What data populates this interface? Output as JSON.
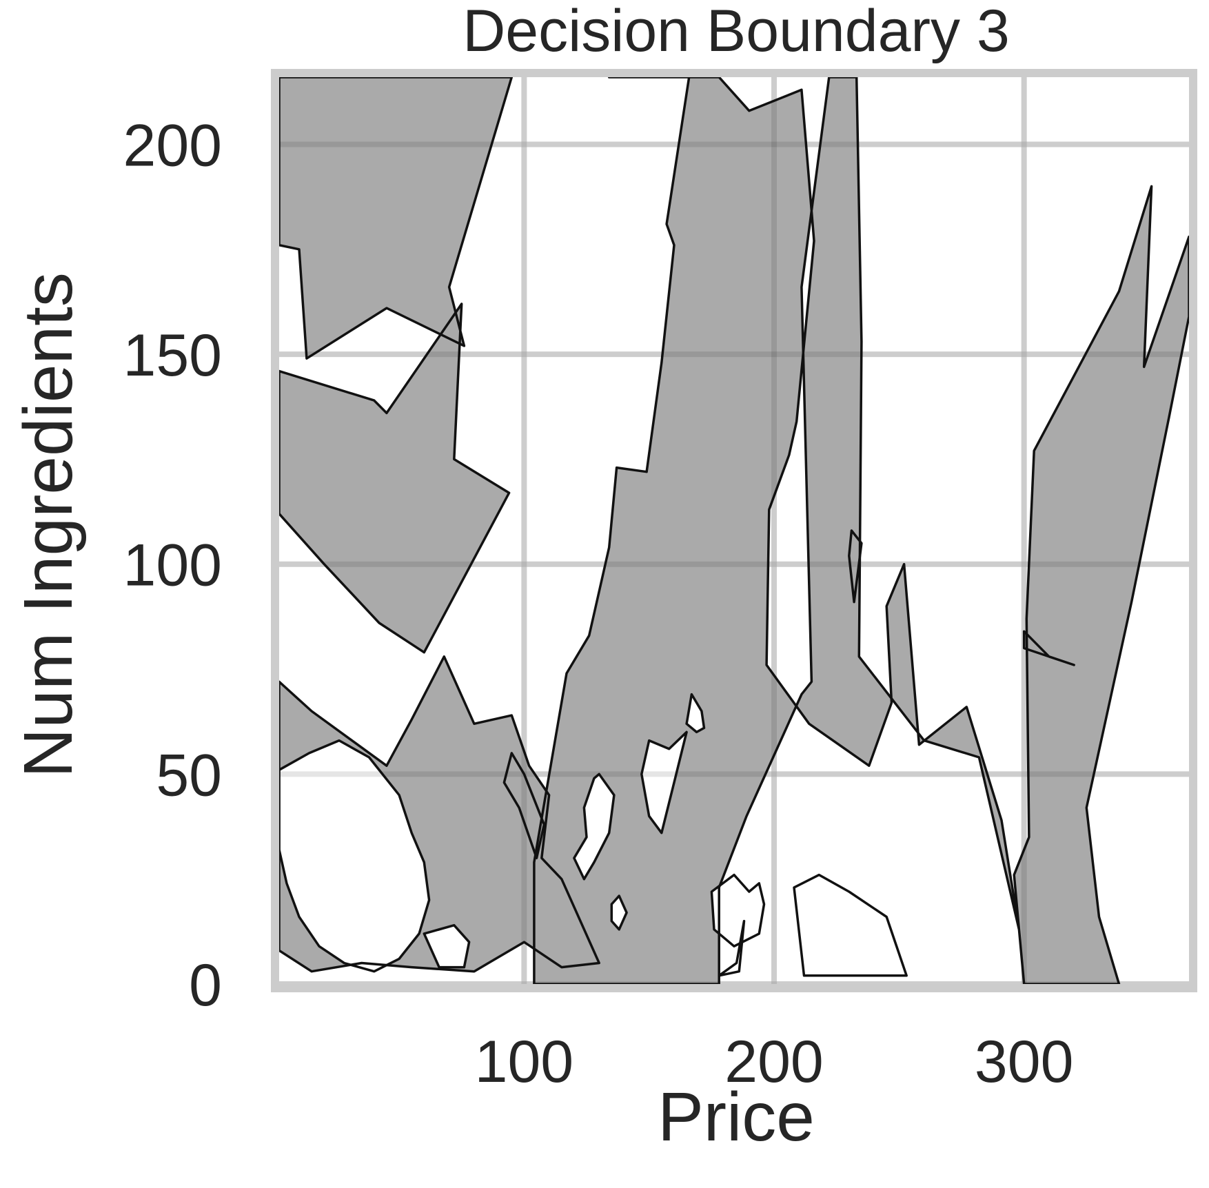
{
  "chart_data": {
    "type": "contour",
    "title": "Decision Boundary 3",
    "xlabel": "Price",
    "ylabel": "Num Ingredients",
    "xlim": [
      2,
      366
    ],
    "ylim": [
      0,
      216
    ],
    "x_ticks": [
      100,
      200,
      300
    ],
    "y_ticks": [
      0,
      50,
      100,
      150,
      200
    ],
    "grid": true,
    "legend": "none",
    "colors": {
      "region_positive": "#aaaaaa",
      "region_negative": "#ffffff",
      "boundary": "#111111",
      "grid": "#e5e5e5",
      "frame": "#cccccc",
      "text": "#262626"
    },
    "regions": [
      {
        "class": "positive",
        "points": [
          [
            2,
            216
          ],
          [
            95,
            216
          ],
          [
            70,
            166
          ],
          [
            76,
            152
          ],
          [
            45,
            161
          ],
          [
            13,
            149
          ],
          [
            10,
            175
          ],
          [
            2,
            176
          ]
        ]
      },
      {
        "class": "positive",
        "points": [
          [
            2,
            146
          ],
          [
            40,
            139
          ],
          [
            45,
            136
          ],
          [
            75,
            162
          ],
          [
            72,
            125
          ],
          [
            94,
            117
          ],
          [
            60,
            79
          ],
          [
            42,
            86
          ],
          [
            20,
            100
          ],
          [
            2,
            112
          ]
        ]
      },
      {
        "class": "positive",
        "points": [
          [
            2,
            72
          ],
          [
            15,
            65
          ],
          [
            45,
            52
          ],
          [
            55,
            63
          ],
          [
            68,
            78
          ],
          [
            80,
            62
          ],
          [
            95,
            64
          ],
          [
            102,
            52
          ],
          [
            110,
            45
          ],
          [
            107,
            30
          ],
          [
            115,
            25
          ],
          [
            130,
            5
          ],
          [
            115,
            4
          ],
          [
            100,
            10
          ],
          [
            80,
            3
          ],
          [
            55,
            4
          ],
          [
            35,
            5
          ],
          [
            15,
            3
          ],
          [
            2,
            8
          ]
        ]
      },
      {
        "class": "positive",
        "points": [
          [
            95,
            55
          ],
          [
            100,
            50
          ],
          [
            104,
            44
          ],
          [
            108,
            38
          ],
          [
            105,
            30
          ],
          [
            98,
            42
          ],
          [
            92,
            48
          ]
        ]
      },
      {
        "class": "positive",
        "points": [
          [
            134,
            216
          ],
          [
            166,
            216
          ],
          [
            157,
            181
          ],
          [
            160,
            176
          ],
          [
            155,
            148
          ],
          [
            149,
            122
          ],
          [
            137,
            123
          ],
          [
            134,
            104
          ],
          [
            126,
            83
          ],
          [
            117,
            74
          ],
          [
            104,
            29
          ],
          [
            104,
            0
          ],
          [
            178,
            0
          ],
          [
            178,
            23
          ],
          [
            189,
            40
          ],
          [
            211,
            69
          ],
          [
            215,
            72
          ],
          [
            211,
            166
          ],
          [
            222,
            216
          ],
          [
            224,
            216
          ],
          [
            233,
            216
          ],
          [
            235,
            153
          ],
          [
            234,
            78
          ],
          [
            260,
            58
          ],
          [
            282,
            54
          ],
          [
            298,
            13
          ],
          [
            300,
            0
          ],
          [
            338,
            0
          ],
          [
            330,
            16
          ],
          [
            325,
            42
          ],
          [
            343,
            91
          ],
          [
            358,
            135
          ],
          [
            366,
            159
          ],
          [
            366,
            178
          ],
          [
            348,
            147
          ],
          [
            351,
            190
          ],
          [
            338,
            165
          ],
          [
            304,
            127
          ],
          [
            301,
            87
          ],
          [
            302,
            35
          ],
          [
            296,
            26
          ],
          [
            298,
            13
          ],
          [
            291,
            39
          ],
          [
            277,
            66
          ],
          [
            258,
            57
          ],
          [
            252,
            100
          ],
          [
            245,
            90
          ],
          [
            247,
            67
          ],
          [
            238,
            52
          ],
          [
            214,
            62
          ],
          [
            197,
            76
          ],
          [
            198,
            113
          ],
          [
            206,
            126
          ],
          [
            209,
            134
          ],
          [
            216,
            177
          ],
          [
            211,
            213
          ],
          [
            190,
            208
          ],
          [
            178,
            216
          ],
          [
            172,
            216
          ],
          [
            159,
            216
          ]
        ]
      },
      {
        "class": "positive",
        "points": [
          [
            230,
            102
          ],
          [
            232,
            91
          ],
          [
            235,
            105
          ],
          [
            231,
            108
          ]
        ]
      },
      {
        "class": "positive",
        "points": [
          [
            300,
            84
          ],
          [
            310,
            78
          ],
          [
            320,
            76
          ],
          [
            300,
            80
          ]
        ]
      }
    ],
    "islands": [
      {
        "class": "negative",
        "points": [
          [
            2,
            51
          ],
          [
            14,
            55
          ],
          [
            26,
            58
          ],
          [
            38,
            54
          ],
          [
            50,
            45
          ],
          [
            55,
            36
          ],
          [
            60,
            29
          ],
          [
            62,
            20
          ],
          [
            58,
            12
          ],
          [
            50,
            6
          ],
          [
            40,
            3
          ],
          [
            28,
            5
          ],
          [
            18,
            9
          ],
          [
            10,
            16
          ],
          [
            5,
            24
          ],
          [
            2,
            32
          ]
        ]
      },
      {
        "class": "negative",
        "points": [
          [
            60,
            12
          ],
          [
            72,
            14
          ],
          [
            78,
            10
          ],
          [
            76,
            4
          ],
          [
            66,
            4
          ]
        ]
      },
      {
        "class": "negative",
        "points": [
          [
            120,
            30
          ],
          [
            125,
            35
          ],
          [
            124,
            42
          ],
          [
            128,
            49
          ],
          [
            130,
            50
          ],
          [
            136,
            45
          ],
          [
            134,
            36
          ],
          [
            128,
            29
          ],
          [
            124,
            25
          ]
        ]
      },
      {
        "class": "negative",
        "points": [
          [
            135,
            19
          ],
          [
            138,
            21
          ],
          [
            141,
            17
          ],
          [
            138,
            13
          ],
          [
            135,
            15
          ]
        ]
      },
      {
        "class": "negative",
        "points": [
          [
            150,
            58
          ],
          [
            158,
            56
          ],
          [
            165,
            60
          ],
          [
            160,
            48
          ],
          [
            155,
            36
          ],
          [
            150,
            40
          ],
          [
            147,
            50
          ]
        ]
      },
      {
        "class": "negative",
        "points": [
          [
            175,
            22
          ],
          [
            184,
            26
          ],
          [
            190,
            22
          ],
          [
            194,
            24
          ],
          [
            196,
            19
          ],
          [
            194,
            12
          ],
          [
            184,
            9
          ],
          [
            176,
            13
          ]
        ]
      },
      {
        "class": "negative",
        "points": [
          [
            167,
            69
          ],
          [
            171,
            65
          ],
          [
            172,
            61
          ],
          [
            169,
            60
          ],
          [
            165,
            62
          ]
        ]
      },
      {
        "class": "negative",
        "points": [
          [
            178,
            2
          ],
          [
            185,
            5
          ],
          [
            188,
            15
          ],
          [
            186,
            3
          ]
        ]
      },
      {
        "class": "negative",
        "points": [
          [
            208,
            23
          ],
          [
            218,
            26
          ],
          [
            230,
            22
          ],
          [
            245,
            16
          ],
          [
            253,
            2
          ],
          [
            212,
            2
          ]
        ]
      }
    ]
  }
}
